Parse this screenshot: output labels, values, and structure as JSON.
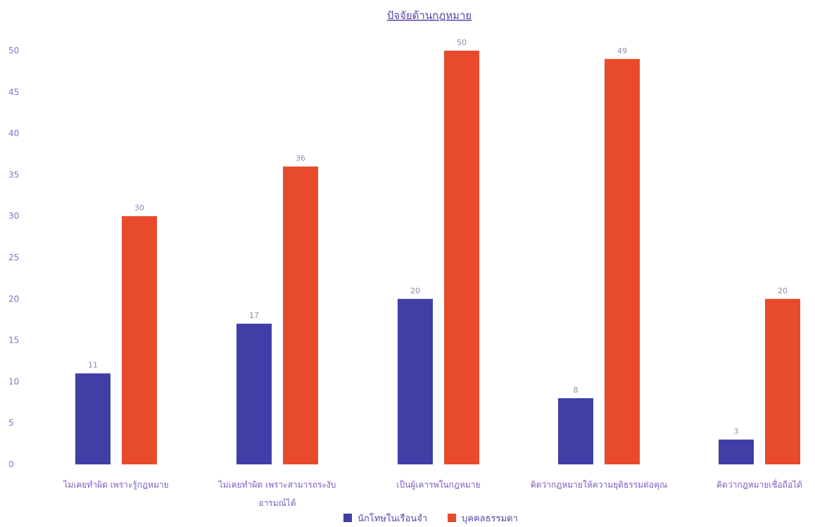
{
  "chart_data": {
    "type": "bar",
    "title": "ปัจจัยด้านกฎหมาย",
    "xlabel": "",
    "ylabel": "",
    "ylim": [
      0,
      50
    ],
    "yticks": [
      0,
      5,
      10,
      15,
      20,
      25,
      30,
      35,
      40,
      45,
      50
    ],
    "grid": false,
    "legend_position": "bottom",
    "categories": [
      [
        "ไม่เคยทำผิด เพราะรู้กฎหมาย"
      ],
      [
        "ไม่เคยทำผิด เพราะสามารถระงับ",
        "อารมณ์ได้"
      ],
      [
        "เป็นผู้เคารพในกฎหมาย"
      ],
      [
        "คิดว่ากฎหมายให้ความยุติธรรมต่อคุณ"
      ],
      [
        "คิดว่ากฎหมายเชื่อถือได้"
      ]
    ],
    "series": [
      {
        "name": "นักโทษในเรือนจำ",
        "color": "#3f3fa6",
        "values": [
          11,
          17,
          20,
          8,
          3
        ]
      },
      {
        "name": "บุคคลธรรมดา",
        "color": "#e84a2c",
        "values": [
          30,
          36,
          50,
          49,
          20
        ]
      }
    ]
  }
}
